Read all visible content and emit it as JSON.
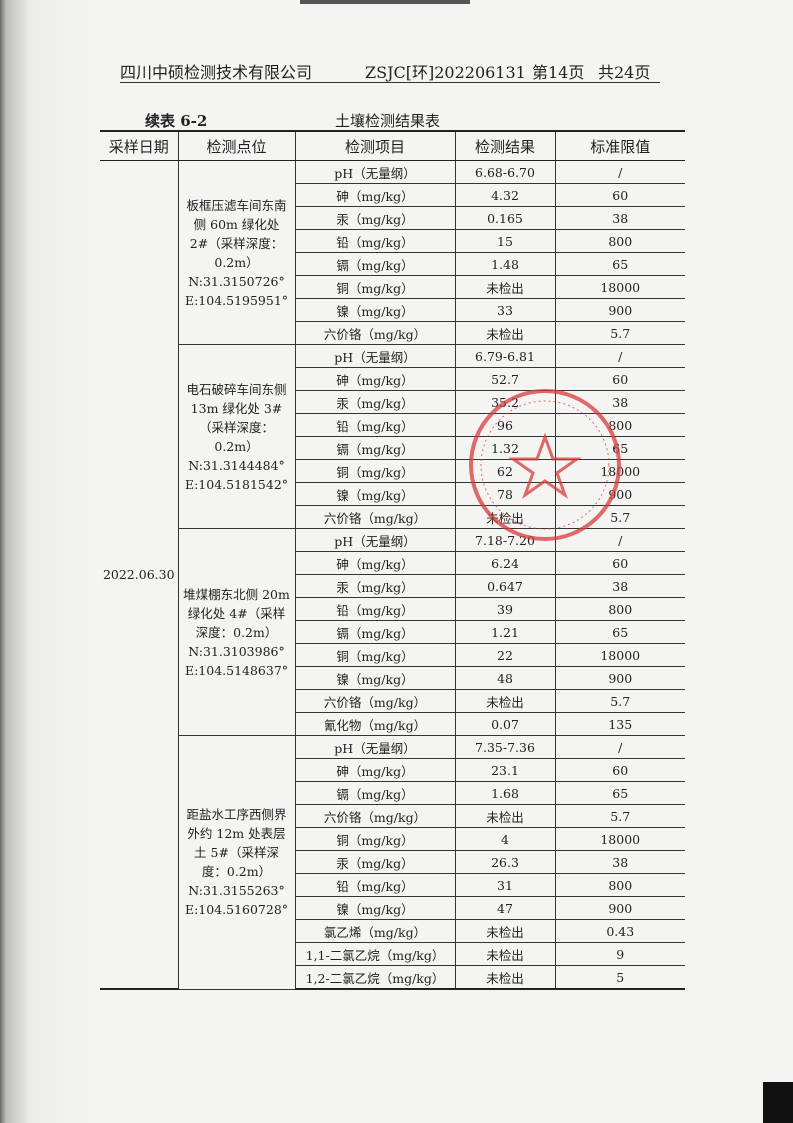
{
  "header": {
    "company": "四川中硕检测技术有限公司",
    "report_no": "ZSJC[环]202206131",
    "page": "第14页",
    "total": "共24页"
  },
  "caption": {
    "table_no": "续表 6-2",
    "title": "土壤检测结果表"
  },
  "columns": [
    "采样日期",
    "检测点位",
    "检测项目",
    "检测结果",
    "标准限值"
  ],
  "date": "2022.06.30",
  "groups": [
    {
      "location": "板框压滤车间东南侧 60m 绿化处 2#（采样深度：0.2m）N:31.3150726° E:104.5195951°",
      "rows": [
        [
          "pH（无量纲）",
          "6.68-6.70",
          "/"
        ],
        [
          "砷（mg/kg）",
          "4.32",
          "60"
        ],
        [
          "汞（mg/kg）",
          "0.165",
          "38"
        ],
        [
          "铅（mg/kg）",
          "15",
          "800"
        ],
        [
          "镉（mg/kg）",
          "1.48",
          "65"
        ],
        [
          "铜（mg/kg）",
          "未检出",
          "18000"
        ],
        [
          "镍（mg/kg）",
          "33",
          "900"
        ],
        [
          "六价铬（mg/kg）",
          "未检出",
          "5.7"
        ]
      ]
    },
    {
      "location": "电石破碎车间东侧 13m 绿化处 3#（采样深度：0.2m）N:31.3144484° E:104.5181542°",
      "rows": [
        [
          "pH（无量纲）",
          "6.79-6.81",
          "/"
        ],
        [
          "砷（mg/kg）",
          "52.7",
          "60"
        ],
        [
          "汞（mg/kg）",
          "35.2",
          "38"
        ],
        [
          "铅（mg/kg）",
          "96",
          "800"
        ],
        [
          "镉（mg/kg）",
          "1.32",
          "65"
        ],
        [
          "铜（mg/kg）",
          "62",
          "18000"
        ],
        [
          "镍（mg/kg）",
          "78",
          "900"
        ],
        [
          "六价铬（mg/kg）",
          "未检出",
          "5.7"
        ]
      ]
    },
    {
      "location": "堆煤棚东北侧 20m 绿化处 4#（采样深度：0.2m）N:31.3103986° E:104.5148637°",
      "rows": [
        [
          "pH（无量纲）",
          "7.18-7.20",
          "/"
        ],
        [
          "砷（mg/kg）",
          "6.24",
          "60"
        ],
        [
          "汞（mg/kg）",
          "0.647",
          "38"
        ],
        [
          "铅（mg/kg）",
          "39",
          "800"
        ],
        [
          "镉（mg/kg）",
          "1.21",
          "65"
        ],
        [
          "铜（mg/kg）",
          "22",
          "18000"
        ],
        [
          "镍（mg/kg）",
          "48",
          "900"
        ],
        [
          "六价铬（mg/kg）",
          "未检出",
          "5.7"
        ],
        [
          "氰化物（mg/kg）",
          "0.07",
          "135"
        ]
      ]
    },
    {
      "location": "距盐水工序西侧界外约 12m 处表层土 5#（采样深度：0.2m）N:31.3155263° E:104.5160728°",
      "rows": [
        [
          "pH（无量纲）",
          "7.35-7.36",
          "/"
        ],
        [
          "砷（mg/kg）",
          "23.1",
          "60"
        ],
        [
          "镉（mg/kg）",
          "1.68",
          "65"
        ],
        [
          "六价铬（mg/kg）",
          "未检出",
          "5.7"
        ],
        [
          "铜（mg/kg）",
          "4",
          "18000"
        ],
        [
          "汞（mg/kg）",
          "26.3",
          "38"
        ],
        [
          "铅（mg/kg）",
          "31",
          "800"
        ],
        [
          "镍（mg/kg）",
          "47",
          "900"
        ],
        [
          "氯乙烯（mg/kg）",
          "未检出",
          "0.43"
        ],
        [
          "1,1-二氯乙烷（mg/kg）",
          "未检出",
          "9"
        ],
        [
          "1,2-二氯乙烷（mg/kg）",
          "未检出",
          "5"
        ]
      ]
    }
  ],
  "stamp_color": "#d83a3a"
}
